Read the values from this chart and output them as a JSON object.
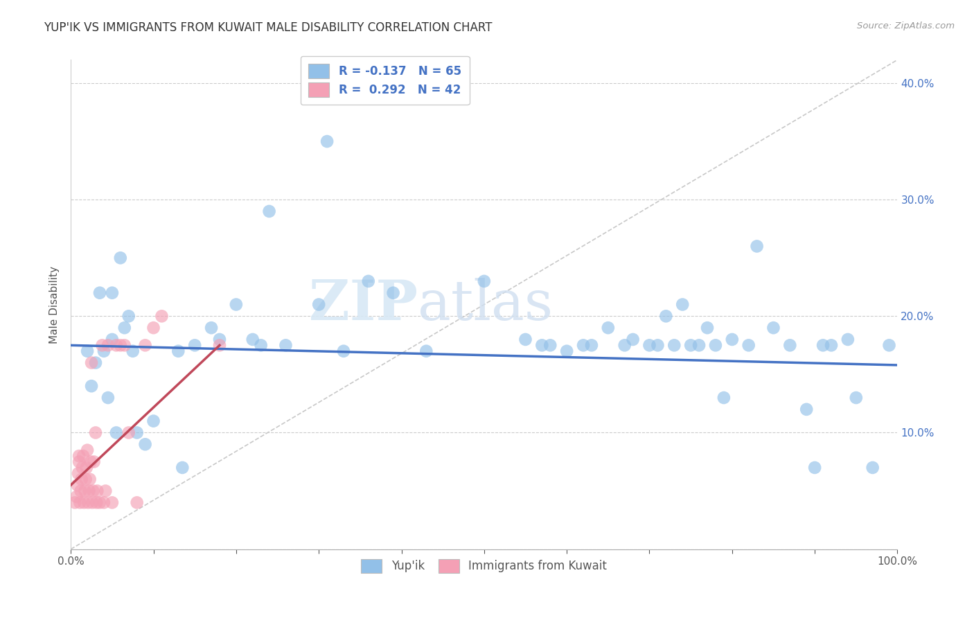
{
  "title": "YUP'IK VS IMMIGRANTS FROM KUWAIT MALE DISABILITY CORRELATION CHART",
  "source": "Source: ZipAtlas.com",
  "xlabel": "",
  "ylabel": "Male Disability",
  "xlim": [
    0.0,
    1.0
  ],
  "ylim": [
    0.0,
    0.42
  ],
  "x_ticks": [
    0.0,
    0.1,
    0.2,
    0.3,
    0.4,
    0.5,
    0.6,
    0.7,
    0.8,
    0.9,
    1.0
  ],
  "x_tick_labels": [
    "0.0%",
    "",
    "",
    "",
    "",
    "",
    "",
    "",
    "",
    "",
    "100.0%"
  ],
  "y_ticks": [
    0.0,
    0.1,
    0.2,
    0.3,
    0.4
  ],
  "y_tick_labels": [
    "",
    "10.0%",
    "20.0%",
    "30.0%",
    "40.0%"
  ],
  "color_blue": "#92C0E8",
  "color_pink": "#F4A0B5",
  "line_blue": "#4472C4",
  "line_pink": "#C0485A",
  "line_diagonal_color": "#C8C8C8",
  "legend_r1": "R = -0.137",
  "legend_n1": "N = 65",
  "legend_r2": "R =  0.292",
  "legend_n2": "N = 42",
  "watermark_zip": "ZIP",
  "watermark_atlas": "atlas",
  "legend_label1": "Yup'ik",
  "legend_label2": "Immigrants from Kuwait",
  "blue_x": [
    0.02,
    0.025,
    0.03,
    0.035,
    0.04,
    0.045,
    0.05,
    0.05,
    0.055,
    0.06,
    0.065,
    0.07,
    0.075,
    0.08,
    0.09,
    0.1,
    0.13,
    0.135,
    0.15,
    0.17,
    0.18,
    0.2,
    0.22,
    0.23,
    0.24,
    0.26,
    0.3,
    0.31,
    0.33,
    0.36,
    0.39,
    0.43,
    0.5,
    0.55,
    0.57,
    0.58,
    0.6,
    0.62,
    0.63,
    0.65,
    0.67,
    0.68,
    0.7,
    0.71,
    0.72,
    0.73,
    0.74,
    0.75,
    0.76,
    0.77,
    0.78,
    0.79,
    0.8,
    0.82,
    0.83,
    0.85,
    0.87,
    0.89,
    0.9,
    0.91,
    0.92,
    0.94,
    0.95,
    0.97,
    0.99
  ],
  "blue_y": [
    0.17,
    0.14,
    0.16,
    0.22,
    0.17,
    0.13,
    0.22,
    0.18,
    0.1,
    0.25,
    0.19,
    0.2,
    0.17,
    0.1,
    0.09,
    0.11,
    0.17,
    0.07,
    0.175,
    0.19,
    0.18,
    0.21,
    0.18,
    0.175,
    0.29,
    0.175,
    0.21,
    0.35,
    0.17,
    0.23,
    0.22,
    0.17,
    0.23,
    0.18,
    0.175,
    0.175,
    0.17,
    0.175,
    0.175,
    0.19,
    0.175,
    0.18,
    0.175,
    0.175,
    0.2,
    0.175,
    0.21,
    0.175,
    0.175,
    0.19,
    0.175,
    0.13,
    0.18,
    0.175,
    0.26,
    0.19,
    0.175,
    0.12,
    0.07,
    0.175,
    0.175,
    0.18,
    0.13,
    0.07,
    0.175
  ],
  "pink_x": [
    0.005,
    0.007,
    0.008,
    0.009,
    0.01,
    0.01,
    0.011,
    0.012,
    0.013,
    0.014,
    0.015,
    0.016,
    0.017,
    0.018,
    0.019,
    0.02,
    0.021,
    0.022,
    0.023,
    0.024,
    0.025,
    0.026,
    0.027,
    0.028,
    0.03,
    0.031,
    0.032,
    0.035,
    0.038,
    0.04,
    0.042,
    0.045,
    0.05,
    0.055,
    0.06,
    0.065,
    0.07,
    0.08,
    0.09,
    0.1,
    0.11,
    0.18
  ],
  "pink_y": [
    0.04,
    0.045,
    0.055,
    0.065,
    0.075,
    0.08,
    0.04,
    0.05,
    0.06,
    0.07,
    0.08,
    0.04,
    0.05,
    0.06,
    0.07,
    0.085,
    0.04,
    0.05,
    0.06,
    0.075,
    0.16,
    0.04,
    0.05,
    0.075,
    0.1,
    0.04,
    0.05,
    0.04,
    0.175,
    0.04,
    0.05,
    0.175,
    0.04,
    0.175,
    0.175,
    0.175,
    0.1,
    0.04,
    0.175,
    0.19,
    0.2,
    0.175
  ],
  "blue_line_x0": 0.0,
  "blue_line_y0": 0.175,
  "blue_line_x1": 1.0,
  "blue_line_y1": 0.158,
  "pink_line_x0": 0.0,
  "pink_line_y0": 0.055,
  "pink_line_x1": 0.18,
  "pink_line_y1": 0.175
}
